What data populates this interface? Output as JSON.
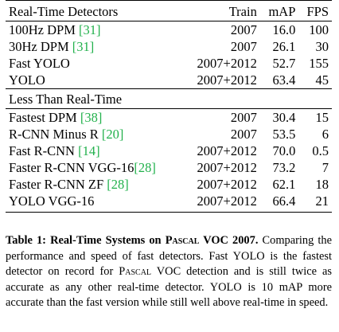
{
  "table": {
    "header": {
      "name": "Real-Time Detectors",
      "train": "Train",
      "map": "mAP",
      "fps": "FPS"
    },
    "realtime_rows": [
      {
        "name": "100Hz DPM ",
        "cite": "[31]",
        "train": "2007",
        "map": "16.0",
        "fps": "100"
      },
      {
        "name": "30Hz DPM ",
        "cite": "[31]",
        "train": "2007",
        "map": "26.1",
        "fps": "30"
      },
      {
        "name": "Fast YOLO",
        "cite": "",
        "train": "2007+2012",
        "map": "52.7",
        "fps": "155"
      },
      {
        "name": "YOLO",
        "cite": "",
        "train": "2007+2012",
        "map": "63.4",
        "fps": "45"
      }
    ],
    "section2_title": "Less Than Real-Time",
    "slow_rows": [
      {
        "name": "Fastest DPM ",
        "cite": "[38]",
        "train": "2007",
        "map": "30.4",
        "fps": "15"
      },
      {
        "name": "R-CNN Minus R ",
        "cite": "[20]",
        "train": "2007",
        "map": "53.5",
        "fps": "6"
      },
      {
        "name": "Fast R-CNN ",
        "cite": "[14]",
        "train": "2007+2012",
        "map": "70.0",
        "fps": "0.5"
      },
      {
        "name": "Faster R-CNN VGG-16",
        "cite": "[28]",
        "train": "2007+2012",
        "map": "73.2",
        "fps": "7"
      },
      {
        "name": "Faster R-CNN ZF ",
        "cite": "[28]",
        "train": "2007+2012",
        "map": "62.1",
        "fps": "18"
      },
      {
        "name": "YOLO VGG-16",
        "cite": "",
        "train": "2007+2012",
        "map": "66.4",
        "fps": "21"
      }
    ]
  },
  "caption": {
    "label": "Table 1:",
    "title_part1": " Real-Time Systems on ",
    "title_sc": "Pascal",
    "title_part2": " VOC 2007.",
    "text_part1": " Comparing the performance and speed of fast detectors. Fast YOLO is the fastest detector on record for ",
    "text_sc": "Pascal",
    "text_part2": " VOC detection and is still twice as accurate as any other real-time detector. YOLO is 10 mAP more accurate than the fast version while still well above real-time in speed."
  },
  "colors": {
    "citation": "#22b14c",
    "text": "#000000"
  }
}
